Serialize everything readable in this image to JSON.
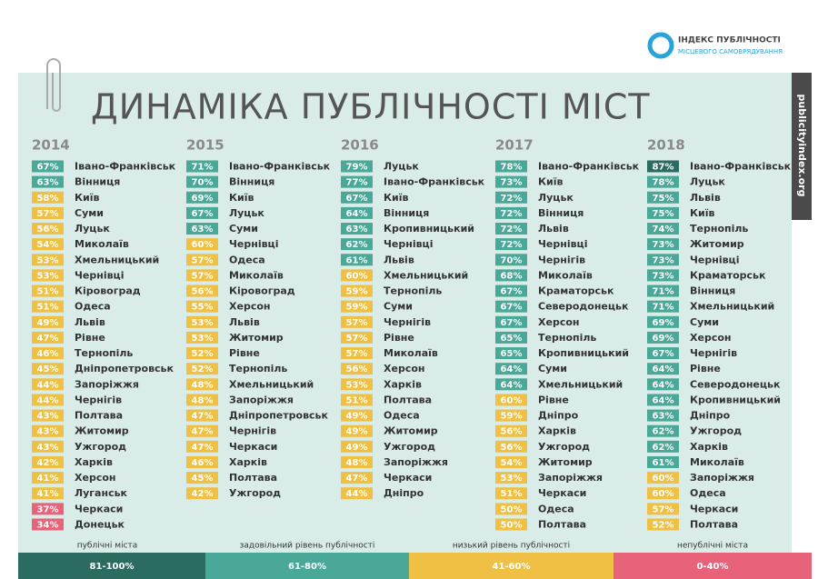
{
  "header": {
    "logo_line1": "ІНДЕКС ПУБЛІЧНОСТІ",
    "logo_line2": "МІСЦЕВОГО САМОВРЯДУВАННЯ",
    "title": "ДИНАМІКА ПУБЛІЧНОСТІ МІСТ",
    "site": "publicityindex.org"
  },
  "columns": [
    {
      "year": "2014",
      "rows": [
        [
          "67%",
          "Івано-Франківськ"
        ],
        [
          "63%",
          "Вінниця"
        ],
        [
          "58%",
          "Київ"
        ],
        [
          "57%",
          "Суми"
        ],
        [
          "56%",
          "Луцьк"
        ],
        [
          "54%",
          "Миколаїв"
        ],
        [
          "53%",
          "Хмельницький"
        ],
        [
          "53%",
          "Чернівці"
        ],
        [
          "51%",
          "Кіровоград"
        ],
        [
          "51%",
          "Одеса"
        ],
        [
          "49%",
          "Львів"
        ],
        [
          "47%",
          "Рівне"
        ],
        [
          "46%",
          "Тернопіль"
        ],
        [
          "45%",
          "Дніпропетровськ"
        ],
        [
          "44%",
          "Запоріжжя"
        ],
        [
          "44%",
          "Чернігів"
        ],
        [
          "43%",
          "Полтава"
        ],
        [
          "43%",
          "Житомир"
        ],
        [
          "43%",
          "Ужгород"
        ],
        [
          "42%",
          "Харків"
        ],
        [
          "41%",
          "Херсон"
        ],
        [
          "41%",
          "Луганськ"
        ],
        [
          "37%",
          "Черкаси"
        ],
        [
          "34%",
          "Донецьк"
        ]
      ]
    },
    {
      "year": "2015",
      "rows": [
        [
          "71%",
          "Івано-Франківськ"
        ],
        [
          "70%",
          "Вінниця"
        ],
        [
          "69%",
          "Київ"
        ],
        [
          "67%",
          "Луцьк"
        ],
        [
          "63%",
          "Суми"
        ],
        [
          "60%",
          "Чернівці"
        ],
        [
          "57%",
          "Одеса"
        ],
        [
          "57%",
          "Миколаїв"
        ],
        [
          "56%",
          "Кіровоград"
        ],
        [
          "55%",
          "Херсон"
        ],
        [
          "53%",
          "Львів"
        ],
        [
          "53%",
          "Житомир"
        ],
        [
          "52%",
          "Рівне"
        ],
        [
          "52%",
          "Тернопіль"
        ],
        [
          "48%",
          "Хмельницький"
        ],
        [
          "48%",
          "Запоріжжя"
        ],
        [
          "47%",
          "Дніпропетровськ"
        ],
        [
          "47%",
          "Чернігів"
        ],
        [
          "47%",
          "Черкаси"
        ],
        [
          "46%",
          "Харків"
        ],
        [
          "45%",
          "Полтава"
        ],
        [
          "42%",
          "Ужгород"
        ]
      ]
    },
    {
      "year": "2016",
      "rows": [
        [
          "79%",
          "Луцьк"
        ],
        [
          "77%",
          "Івано-Франківськ"
        ],
        [
          "67%",
          "Київ"
        ],
        [
          "64%",
          "Вінниця"
        ],
        [
          "63%",
          "Кропивницький"
        ],
        [
          "62%",
          "Чернівці"
        ],
        [
          "61%",
          "Львів"
        ],
        [
          "60%",
          "Хмельницький"
        ],
        [
          "59%",
          "Тернопіль"
        ],
        [
          "59%",
          "Суми"
        ],
        [
          "57%",
          "Чернігів"
        ],
        [
          "57%",
          "Рівне"
        ],
        [
          "57%",
          "Миколаїв"
        ],
        [
          "56%",
          "Херсон"
        ],
        [
          "53%",
          "Харків"
        ],
        [
          "51%",
          "Полтава"
        ],
        [
          "49%",
          "Одеса"
        ],
        [
          "49%",
          "Житомир"
        ],
        [
          "49%",
          "Ужгород"
        ],
        [
          "48%",
          "Запоріжжя"
        ],
        [
          "47%",
          "Черкаси"
        ],
        [
          "44%",
          "Дніпро"
        ]
      ]
    },
    {
      "year": "2017",
      "rows": [
        [
          "78%",
          "Івано-Франківськ"
        ],
        [
          "73%",
          "Київ"
        ],
        [
          "72%",
          "Луцьк"
        ],
        [
          "72%",
          "Вінниця"
        ],
        [
          "72%",
          "Львів"
        ],
        [
          "72%",
          "Чернівці"
        ],
        [
          "70%",
          "Чернігів"
        ],
        [
          "68%",
          "Миколаїв"
        ],
        [
          "67%",
          "Краматорськ"
        ],
        [
          "67%",
          "Северодонецьк"
        ],
        [
          "67%",
          "Херсон"
        ],
        [
          "65%",
          "Тернопіль"
        ],
        [
          "65%",
          "Кропивницький"
        ],
        [
          "64%",
          "Суми"
        ],
        [
          "64%",
          "Хмельницький"
        ],
        [
          "60%",
          "Рівне"
        ],
        [
          "59%",
          "Дніпро"
        ],
        [
          "56%",
          "Харків"
        ],
        [
          "56%",
          "Ужгород"
        ],
        [
          "54%",
          "Житомир"
        ],
        [
          "53%",
          "Запоріжжя"
        ],
        [
          "51%",
          "Черкаси"
        ],
        [
          "50%",
          "Одеса"
        ],
        [
          "50%",
          "Полтава"
        ]
      ]
    },
    {
      "year": "2018",
      "rows": [
        [
          "87%",
          "Івано-Франківськ"
        ],
        [
          "78%",
          "Луцьк"
        ],
        [
          "75%",
          "Львів"
        ],
        [
          "75%",
          "Київ"
        ],
        [
          "74%",
          "Тернопіль"
        ],
        [
          "73%",
          "Житомир"
        ],
        [
          "73%",
          "Чернівці"
        ],
        [
          "73%",
          "Краматорськ"
        ],
        [
          "71%",
          "Вінниця"
        ],
        [
          "71%",
          "Хмельницький"
        ],
        [
          "69%",
          "Суми"
        ],
        [
          "69%",
          "Херсон"
        ],
        [
          "67%",
          "Чернігів"
        ],
        [
          "64%",
          "Рівне"
        ],
        [
          "64%",
          "Северодонецьк"
        ],
        [
          "64%",
          "Кропивницький"
        ],
        [
          "63%",
          "Дніпро"
        ],
        [
          "62%",
          "Ужгород"
        ],
        [
          "62%",
          "Харків"
        ],
        [
          "61%",
          "Миколаїв"
        ],
        [
          "60%",
          "Запоріжжя"
        ],
        [
          "60%",
          "Одеса"
        ],
        [
          "57%",
          "Черкаси"
        ],
        [
          "52%",
          "Полтава"
        ]
      ]
    }
  ],
  "legend": [
    {
      "label": "публічні міста",
      "range": "81-100%",
      "color": "#2b6b60"
    },
    {
      "label": "задовільний рівень публічності",
      "range": "61-80%",
      "color": "#4aa898"
    },
    {
      "label": "низький рівень публічності",
      "range": "41-60%",
      "color": "#efc043"
    },
    {
      "label": "непублічні міста",
      "range": "0-40%",
      "color": "#e8637a"
    }
  ]
}
